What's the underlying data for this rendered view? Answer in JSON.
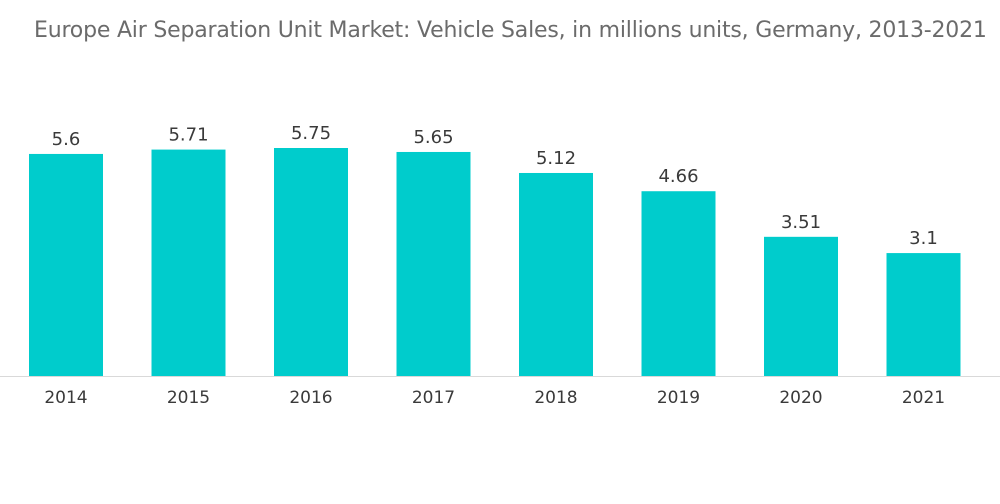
{
  "chart_data": {
    "type": "bar",
    "title": "Europe Air Separation Unit Market: Vehicle Sales, in millions units, Germany, 2013-2021",
    "categories": [
      "2014",
      "2015",
      "2016",
      "2017",
      "2018",
      "2019",
      "2020",
      "2021"
    ],
    "values": [
      5.6,
      5.71,
      5.75,
      5.65,
      5.12,
      4.66,
      3.51,
      3.1
    ],
    "value_labels": [
      "5.6",
      "5.71",
      "5.75",
      "5.65",
      "5.12",
      "4.66",
      "3.51",
      "3.1"
    ],
    "xlabel": "",
    "ylabel": "",
    "ylim": [
      0,
      5.75
    ],
    "grid": false,
    "legend": "none",
    "bar_color": "#00cccc",
    "axis_color": "#d9d9d9"
  }
}
